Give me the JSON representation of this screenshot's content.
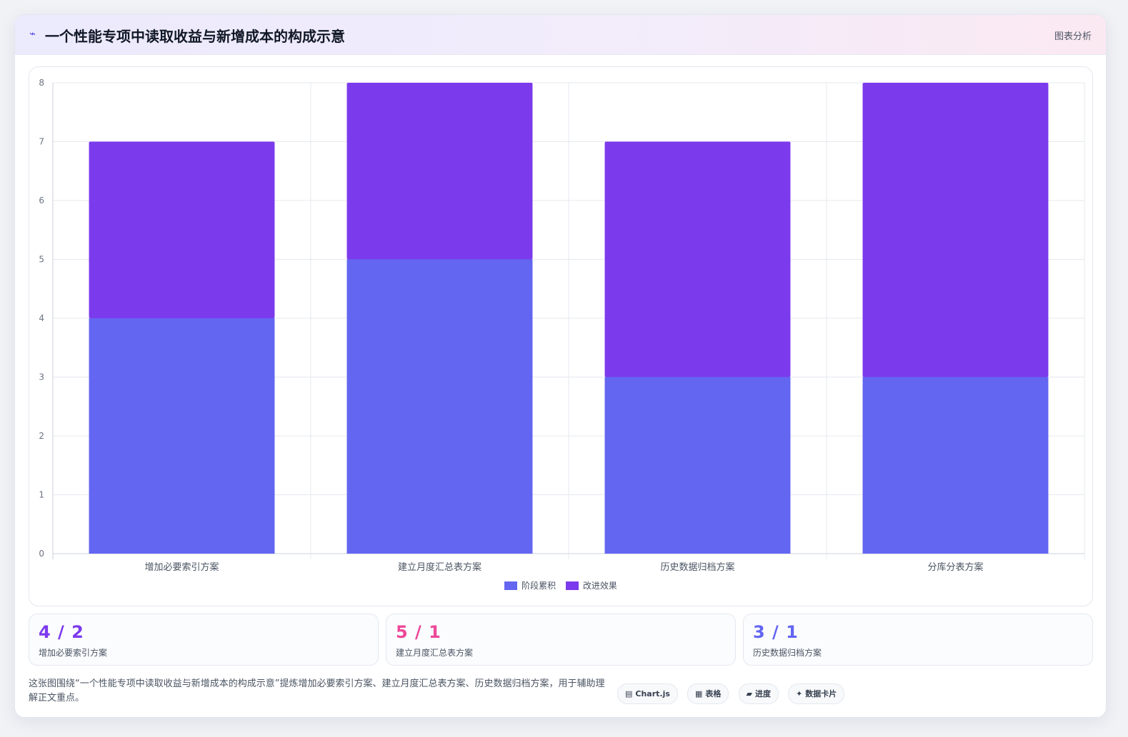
{
  "header": {
    "icon": "bolt-icon",
    "title": "一个性能专项中读取收益与新增成本的构成示意",
    "tag": "图表分析"
  },
  "chart_data": {
    "type": "bar",
    "stacked": true,
    "categories": [
      "增加必要索引方案",
      "建立月度汇总表方案",
      "历史数据归档方案",
      "分库分表方案"
    ],
    "series": [
      {
        "name": "阶段累积",
        "color": "#6366f1",
        "values": [
          4,
          5,
          3,
          3
        ]
      },
      {
        "name": "改进效果",
        "color": "#7c3aed",
        "values": [
          3,
          3,
          4,
          5
        ]
      }
    ],
    "ylim": [
      0,
      8
    ],
    "yticks": [
      0,
      1,
      2,
      3,
      4,
      5,
      6,
      7,
      8
    ],
    "grid": true,
    "legend": "bottom-center",
    "title": "",
    "xlabel": "",
    "ylabel": ""
  },
  "stats": [
    {
      "value": "4 / 2",
      "label": "增加必要索引方案",
      "color": "#7c3aed"
    },
    {
      "value": "5 / 1",
      "label": "建立月度汇总表方案",
      "color": "#ec4899"
    },
    {
      "value": "3 / 1",
      "label": "历史数据归档方案",
      "color": "#6366f1"
    }
  ],
  "note": "这张图围绕“一个性能专项中读取收益与新增成本的构成示意”提炼增加必要索引方案、建立月度汇总表方案、历史数据归档方案，用于辅助理解正文重点。",
  "chips": [
    {
      "icon": "▤",
      "label": "Chart.js"
    },
    {
      "icon": "▦",
      "label": "表格"
    },
    {
      "icon": "▰",
      "label": "进度"
    },
    {
      "icon": "✦",
      "label": "数据卡片"
    }
  ]
}
